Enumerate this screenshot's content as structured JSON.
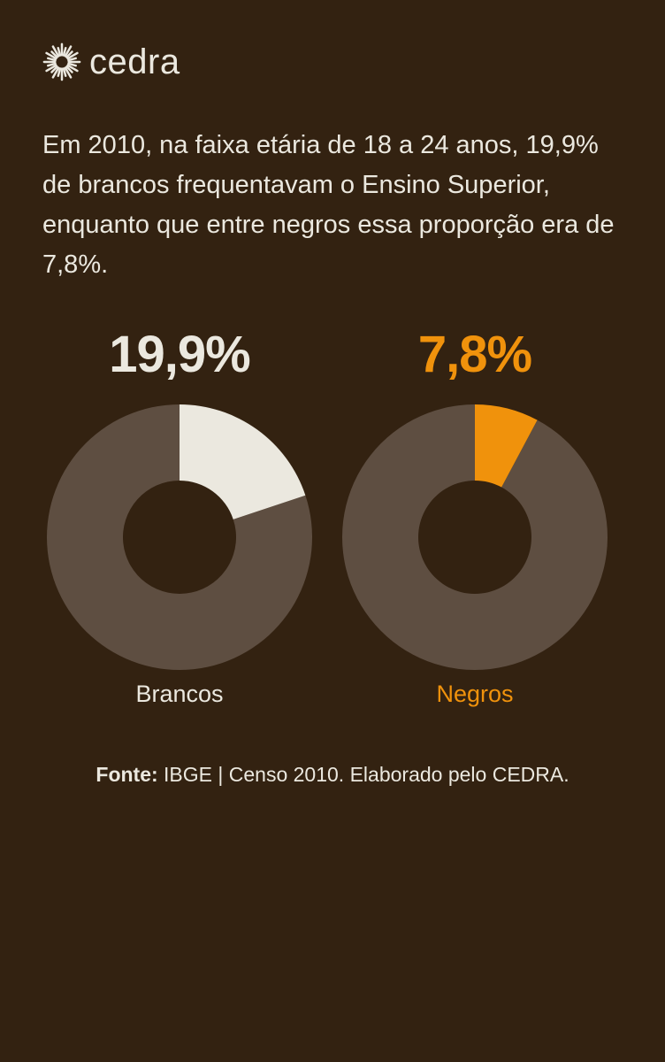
{
  "logo": {
    "text": "cedra",
    "icon": "sunburst-icon"
  },
  "intro_text": "Em 2010, na faixa etária de 18 a 24 anos, 19,9% de brancos frequentavam o Ensino Superior, enquanto que entre negros essa proporção era de 7,8%.",
  "colors": {
    "background": "#332211",
    "remainder": "#5e4e41",
    "brancos": "#ebe8df",
    "negros": "#f0920c"
  },
  "chart_data": [
    {
      "type": "pie",
      "donut": true,
      "label": "Brancos",
      "value_label": "19,9%",
      "values": [
        19.9,
        80.1
      ],
      "color": "#ebe8df"
    },
    {
      "type": "pie",
      "donut": true,
      "label": "Negros",
      "value_label": "7,8%",
      "values": [
        7.8,
        92.2
      ],
      "color": "#f0920c"
    }
  ],
  "source": {
    "prefix": "Fonte:",
    "text": " IBGE | Censo 2010. Elaborado pelo CEDRA."
  }
}
